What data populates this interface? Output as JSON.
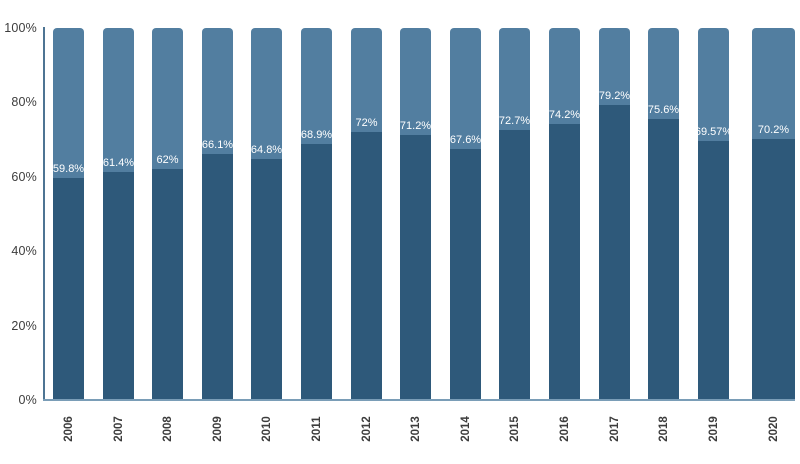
{
  "chart_data": {
    "type": "bar",
    "stacked": true,
    "stacked_total": 100,
    "title": "",
    "xlabel": "",
    "ylabel": "",
    "ylim": [
      0,
      100
    ],
    "grid": false,
    "legend": "none",
    "yticks": [
      "0%",
      "20%",
      "40%",
      "60%",
      "80%",
      "100%"
    ],
    "ytick_values": [
      0,
      20,
      40,
      60,
      80,
      100
    ],
    "categories": [
      "2006",
      "2007",
      "2008",
      "2009",
      "2010",
      "2011",
      "2012",
      "2013",
      "2014",
      "2015",
      "2016",
      "2017",
      "2018",
      "2019",
      "2020"
    ],
    "series": [
      {
        "name": "bottom-segment",
        "color": "#2E597A",
        "values": [
          59.8,
          61.4,
          62,
          66.1,
          64.8,
          68.9,
          72,
          71.2,
          67.6,
          72.7,
          74.2,
          79.2,
          75.6,
          69.57,
          70.2
        ],
        "labels": [
          "59.8%",
          "61.4%",
          "62%",
          "66.1%",
          "64.8%",
          "68.9%",
          "72%",
          "71.2%",
          "67.6%",
          "72.7%",
          "74.2%",
          "79.2%",
          "75.6%",
          "69.57%",
          "70.2%"
        ],
        "label_color": "#FFFFFF"
      },
      {
        "name": "top-segment",
        "color": "#527EA0",
        "values": [
          40.2,
          38.6,
          38,
          33.9,
          35.2,
          31.1,
          28,
          28.8,
          32.4,
          27.3,
          25.8,
          20.8,
          24.4,
          30.43,
          29.8
        ],
        "labels": [
          "",
          "",
          "",
          "",
          "",
          "",
          "",
          "",
          "",
          "",
          "",
          "",
          "",
          "",
          ""
        ],
        "label_color": ""
      }
    ]
  },
  "colors": {
    "bar_dark": "#2E597A",
    "bar_light": "#527EA0",
    "y_axis_line": "#4D7493",
    "x_axis_line": "#7A9DB7",
    "tick_text": "#3D3D3D",
    "background": "#FFFFFF"
  }
}
